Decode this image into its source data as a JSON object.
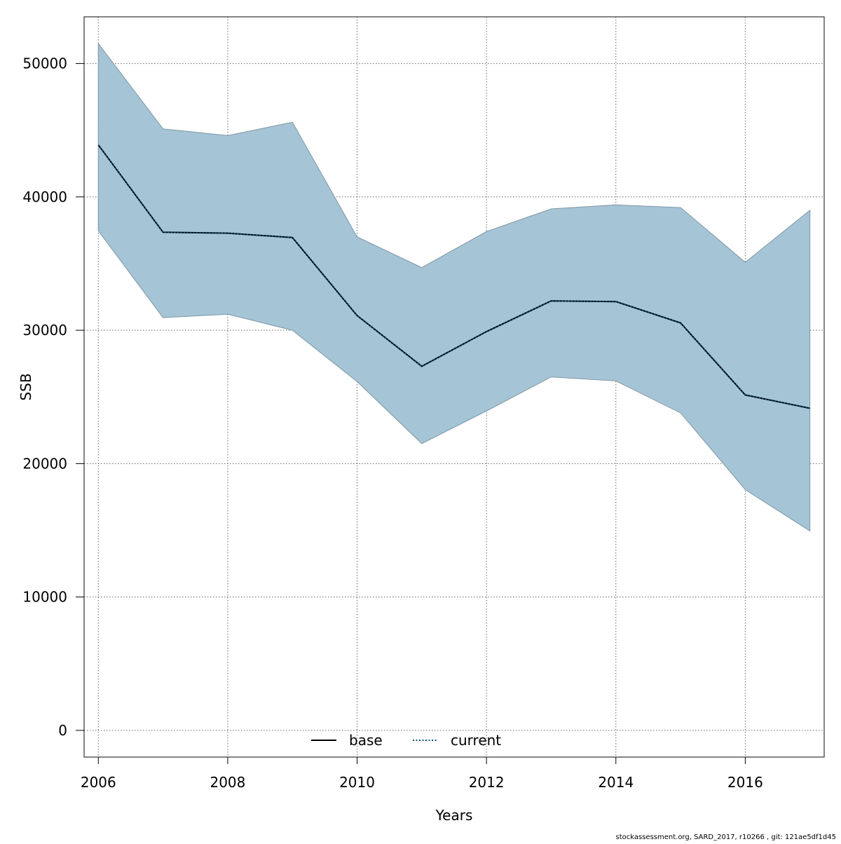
{
  "chart_data": {
    "type": "line",
    "xlabel": "Years",
    "ylabel": "SSB",
    "xlim": [
      2005.78,
      2017.22
    ],
    "ylim": [
      -2000,
      53500
    ],
    "xticks": [
      2006,
      2008,
      2010,
      2012,
      2014,
      2016
    ],
    "yticks": [
      0,
      10000,
      20000,
      30000,
      40000,
      50000
    ],
    "x": [
      2006,
      2007,
      2008,
      2009,
      2010,
      2011,
      2012,
      2013,
      2014,
      2015,
      2016,
      2017
    ],
    "series": [
      {
        "name": "base",
        "style": "solid",
        "color": "#000000",
        "values": [
          43900,
          37350,
          37280,
          36950,
          31100,
          27300,
          29900,
          32200,
          32150,
          30550,
          25150,
          24150
        ]
      },
      {
        "name": "current",
        "style": "dotted",
        "color": "#0b4f7a",
        "values": [
          43900,
          37350,
          37280,
          36950,
          31100,
          27300,
          29900,
          32200,
          32150,
          30550,
          25150,
          24150
        ]
      }
    ],
    "confidence_band": {
      "color": "#a5c4d5",
      "edge_color": "#7e97a4",
      "upper": [
        51500,
        45100,
        44600,
        45600,
        37000,
        34700,
        37400,
        39100,
        39400,
        39200,
        35100,
        39000
      ],
      "lower": [
        37450,
        30950,
        31200,
        30000,
        26150,
        21500,
        23950,
        26500,
        26200,
        23800,
        18050,
        14950
      ]
    },
    "grid": true,
    "legend_position": "bottom",
    "footnote": "stockassessment.org, SARD_2017, r10266 , git: 121ae5df1d45"
  }
}
